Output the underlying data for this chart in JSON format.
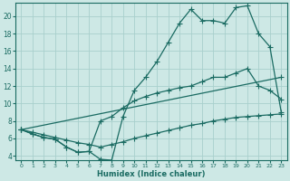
{
  "bg_color": "#cde8e5",
  "grid_color": "#a8d0cc",
  "line_color": "#1a6b62",
  "xlabel": "Humidex (Indice chaleur)",
  "xlim": [
    -0.5,
    23.5
  ],
  "ylim": [
    3.5,
    21.5
  ],
  "xticks": [
    0,
    1,
    2,
    3,
    4,
    5,
    6,
    7,
    8,
    9,
    10,
    11,
    12,
    13,
    14,
    15,
    16,
    17,
    18,
    19,
    20,
    21,
    22,
    23
  ],
  "yticks": [
    4,
    6,
    8,
    10,
    12,
    14,
    16,
    18,
    20
  ],
  "line1_x": [
    0,
    1,
    2,
    3,
    4,
    5,
    6,
    7,
    8,
    9,
    10,
    11,
    12,
    13,
    14,
    15,
    16,
    17,
    18,
    19,
    20,
    21,
    22,
    23
  ],
  "line1_y": [
    7.0,
    6.5,
    6.1,
    5.9,
    5.0,
    4.4,
    4.5,
    3.6,
    3.5,
    8.5,
    11.5,
    13.0,
    14.8,
    17.0,
    19.2,
    20.8,
    19.5,
    19.5,
    19.2,
    21.0,
    21.2,
    18.0,
    16.5,
    9.0
  ],
  "line2_x": [
    0,
    1,
    2,
    3,
    4,
    5,
    6,
    7,
    8,
    9,
    10,
    11,
    12,
    13,
    14,
    15,
    16,
    17,
    18,
    19,
    20,
    21,
    22,
    23
  ],
  "line2_y": [
    7.0,
    6.5,
    6.1,
    5.9,
    5.0,
    4.4,
    4.5,
    8.0,
    8.5,
    9.5,
    10.3,
    10.8,
    11.2,
    11.5,
    11.8,
    12.0,
    12.5,
    13.0,
    13.0,
    13.5,
    14.0,
    12.0,
    11.5,
    10.5
  ],
  "line3_x": [
    0,
    23
  ],
  "line3_y": [
    7.0,
    13.0
  ],
  "line4_x": [
    0,
    1,
    2,
    3,
    4,
    5,
    6,
    7,
    8,
    9,
    10,
    11,
    12,
    13,
    14,
    15,
    16,
    17,
    18,
    19,
    20,
    21,
    22,
    23
  ],
  "line4_y": [
    7.0,
    6.7,
    6.4,
    6.1,
    5.8,
    5.5,
    5.3,
    5.0,
    5.3,
    5.6,
    6.0,
    6.3,
    6.6,
    6.9,
    7.2,
    7.5,
    7.7,
    8.0,
    8.2,
    8.4,
    8.5,
    8.6,
    8.7,
    8.8
  ]
}
